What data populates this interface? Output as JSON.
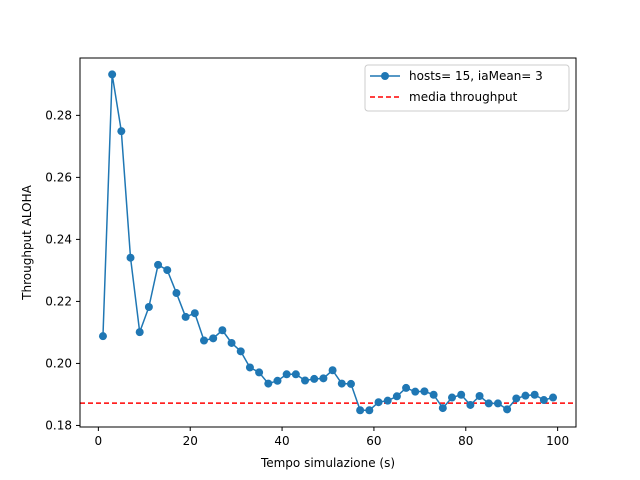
{
  "chart_data": {
    "type": "line",
    "title": "",
    "xlabel": "Tempo simulazione (s)",
    "ylabel": "Throughput ALOHA",
    "xlim": [
      -4,
      104
    ],
    "ylim": [
      0.1795,
      0.2985
    ],
    "xticks": [
      0,
      20,
      40,
      60,
      80,
      100
    ],
    "yticks": [
      0.18,
      0.2,
      0.22,
      0.24,
      0.26,
      0.28
    ],
    "ytick_labels": [
      "0.18",
      "0.20",
      "0.22",
      "0.24",
      "0.26",
      "0.28"
    ],
    "grid": false,
    "legend_position": "upper right",
    "series": [
      {
        "name": "hosts= 15, iaMean= 3",
        "color": "#1f77b4",
        "marker": "circle",
        "x": [
          1,
          3,
          5,
          7,
          9,
          11,
          13,
          15,
          17,
          19,
          21,
          23,
          25,
          27,
          29,
          31,
          33,
          35,
          37,
          39,
          41,
          43,
          45,
          47,
          49,
          51,
          53,
          55,
          57,
          59,
          61,
          63,
          65,
          67,
          69,
          71,
          73,
          75,
          77,
          79,
          81,
          83,
          85,
          87,
          89,
          91,
          93,
          95,
          97,
          99
        ],
        "y": [
          0.2088,
          0.2932,
          0.2749,
          0.2341,
          0.2101,
          0.2182,
          0.2318,
          0.2301,
          0.2227,
          0.215,
          0.2162,
          0.2074,
          0.2081,
          0.2107,
          0.2066,
          0.2039,
          0.1987,
          0.1971,
          0.1935,
          0.1944,
          0.1965,
          0.1965,
          0.1945,
          0.195,
          0.1952,
          0.1978,
          0.1935,
          0.1934,
          0.1849,
          0.1849,
          0.1875,
          0.188,
          0.1894,
          0.1921,
          0.1909,
          0.191,
          0.1899,
          0.1856,
          0.189,
          0.1899,
          0.1866,
          0.1895,
          0.1871,
          0.1871,
          0.1852,
          0.1887,
          0.1896,
          0.1899,
          0.1882,
          0.189
        ]
      }
    ],
    "reference_line": {
      "name": "media throughput",
      "y": 0.1872,
      "color": "#ff0000",
      "style": "dashed"
    }
  }
}
